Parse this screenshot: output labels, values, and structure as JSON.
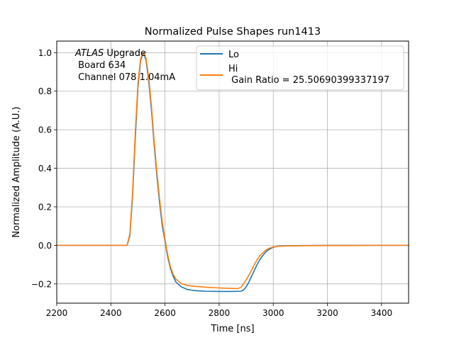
{
  "chart_data": {
    "type": "line",
    "title": "Normalized Pulse Shapes run1413",
    "xlabel": "Time [ns]",
    "ylabel": "Normalized Amplitude (A.U.)",
    "xlim": [
      2200,
      3500
    ],
    "ylim": [
      -0.3,
      1.06
    ],
    "xticks": [
      2200,
      2400,
      2600,
      2800,
      3000,
      3200,
      3400
    ],
    "yticks": [
      -0.2,
      0.0,
      0.2,
      0.4,
      0.6,
      0.8,
      1.0
    ],
    "xtick_labels": [
      "2200",
      "2400",
      "2600",
      "2800",
      "3000",
      "3200",
      "3400"
    ],
    "ytick_labels": [
      "−0.2",
      "0.0",
      "0.2",
      "0.4",
      "0.6",
      "0.8",
      "1.0"
    ],
    "grid": true,
    "legend_position": "top-right",
    "annotation": {
      "line1_italic": "ATLAS",
      "line1_rest": " Upgrade",
      "line2": " Board 634",
      "line3": " Channel 078 1.04mA"
    },
    "series": [
      {
        "name": "Lo",
        "color": "#1f77b4",
        "x": [
          2200,
          2400,
          2460,
          2470,
          2480,
          2490,
          2500,
          2510,
          2520,
          2530,
          2540,
          2550,
          2560,
          2570,
          2580,
          2590,
          2600,
          2610,
          2620,
          2630,
          2640,
          2660,
          2680,
          2700,
          2720,
          2750,
          2800,
          2850,
          2880,
          2890,
          2900,
          2910,
          2920,
          2930,
          2940,
          2950,
          2960,
          2970,
          2980,
          3000,
          3020,
          3050,
          3100,
          3200,
          3300,
          3400,
          3500
        ],
        "y": [
          0.0,
          0.0,
          0.0,
          0.05,
          0.25,
          0.55,
          0.82,
          0.96,
          1.0,
          0.96,
          0.85,
          0.7,
          0.52,
          0.36,
          0.22,
          0.1,
          0.02,
          -0.06,
          -0.12,
          -0.16,
          -0.19,
          -0.215,
          -0.228,
          -0.233,
          -0.236,
          -0.238,
          -0.239,
          -0.239,
          -0.238,
          -0.232,
          -0.215,
          -0.19,
          -0.16,
          -0.13,
          -0.1,
          -0.075,
          -0.055,
          -0.038,
          -0.025,
          -0.01,
          -0.004,
          -0.002,
          -0.001,
          0.0,
          0.0,
          0.0,
          0.0
        ]
      },
      {
        "name": "Hi\n Gain Ratio = 25.50690399337197",
        "color": "#ff7f0e",
        "x": [
          2200,
          2400,
          2460,
          2470,
          2480,
          2490,
          2500,
          2510,
          2520,
          2530,
          2540,
          2550,
          2560,
          2570,
          2580,
          2590,
          2600,
          2610,
          2620,
          2630,
          2640,
          2660,
          2680,
          2700,
          2720,
          2750,
          2800,
          2850,
          2870,
          2880,
          2890,
          2900,
          2910,
          2920,
          2930,
          2940,
          2950,
          2960,
          2970,
          2980,
          3000,
          3020,
          3050,
          3100,
          3200,
          3300,
          3400,
          3500
        ],
        "y": [
          0.0,
          0.0,
          0.0,
          0.06,
          0.27,
          0.58,
          0.84,
          0.97,
          1.0,
          0.97,
          0.87,
          0.72,
          0.54,
          0.38,
          0.24,
          0.12,
          0.03,
          -0.05,
          -0.11,
          -0.15,
          -0.175,
          -0.198,
          -0.207,
          -0.211,
          -0.214,
          -0.217,
          -0.221,
          -0.224,
          -0.224,
          -0.218,
          -0.2,
          -0.178,
          -0.155,
          -0.128,
          -0.1,
          -0.075,
          -0.055,
          -0.04,
          -0.028,
          -0.018,
          -0.008,
          -0.005,
          -0.003,
          -0.002,
          -0.001,
          -0.001,
          0.0,
          0.0
        ]
      }
    ]
  }
}
